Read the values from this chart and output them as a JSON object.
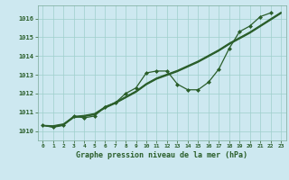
{
  "title": "Graphe pression niveau de la mer (hPa)",
  "background_color": "#cde8f0",
  "plot_bg_color": "#cde8f0",
  "grid_color": "#9ecfcc",
  "line_color": "#2a5e2a",
  "marker_color": "#2a5e2a",
  "xlim": [
    -0.5,
    23.5
  ],
  "ylim": [
    1009.5,
    1016.7
  ],
  "yticks": [
    1010,
    1011,
    1012,
    1013,
    1014,
    1015,
    1016
  ],
  "xticks": [
    0,
    1,
    2,
    3,
    4,
    5,
    6,
    7,
    8,
    9,
    10,
    11,
    12,
    13,
    14,
    15,
    16,
    17,
    18,
    19,
    20,
    21,
    22,
    23
  ],
  "straight1": [
    1010.3,
    1010.25,
    1010.35,
    1010.75,
    1010.8,
    1010.9,
    1011.25,
    1011.5,
    1011.8,
    1012.1,
    1012.5,
    1012.8,
    1013.0,
    1013.2,
    1013.45,
    1013.7,
    1014.0,
    1014.3,
    1014.65,
    1014.95,
    1015.25,
    1015.6,
    1015.95,
    1016.3
  ],
  "straight2": [
    1010.3,
    1010.28,
    1010.38,
    1010.78,
    1010.83,
    1010.93,
    1011.28,
    1011.53,
    1011.83,
    1012.13,
    1012.53,
    1012.83,
    1013.03,
    1013.23,
    1013.48,
    1013.73,
    1014.03,
    1014.33,
    1014.68,
    1014.98,
    1015.28,
    1015.63,
    1015.98,
    1016.33
  ],
  "straight3": [
    1010.3,
    1010.22,
    1010.32,
    1010.72,
    1010.77,
    1010.87,
    1011.22,
    1011.47,
    1011.77,
    1012.07,
    1012.47,
    1012.77,
    1012.97,
    1013.17,
    1013.42,
    1013.67,
    1013.97,
    1014.27,
    1014.62,
    1014.92,
    1015.22,
    1015.57,
    1015.92,
    1016.27
  ],
  "curve_y": [
    1010.3,
    1010.2,
    1010.3,
    1010.8,
    1010.7,
    1010.8,
    1011.3,
    1011.5,
    1012.0,
    1012.3,
    1013.1,
    1013.2,
    1013.2,
    1012.5,
    1012.2,
    1012.2,
    1012.6,
    1013.3,
    1014.4,
    1015.3,
    1015.6,
    1016.1,
    1016.3
  ],
  "curve_hours": [
    0,
    1,
    2,
    3,
    4,
    5,
    6,
    7,
    8,
    9,
    10,
    11,
    12,
    13,
    14,
    15,
    16,
    17,
    18,
    19,
    20,
    21,
    22
  ],
  "straight_hours": [
    0,
    1,
    2,
    3,
    4,
    5,
    6,
    7,
    8,
    9,
    10,
    11,
    12,
    13,
    14,
    15,
    16,
    17,
    18,
    19,
    20,
    21,
    22,
    23
  ]
}
